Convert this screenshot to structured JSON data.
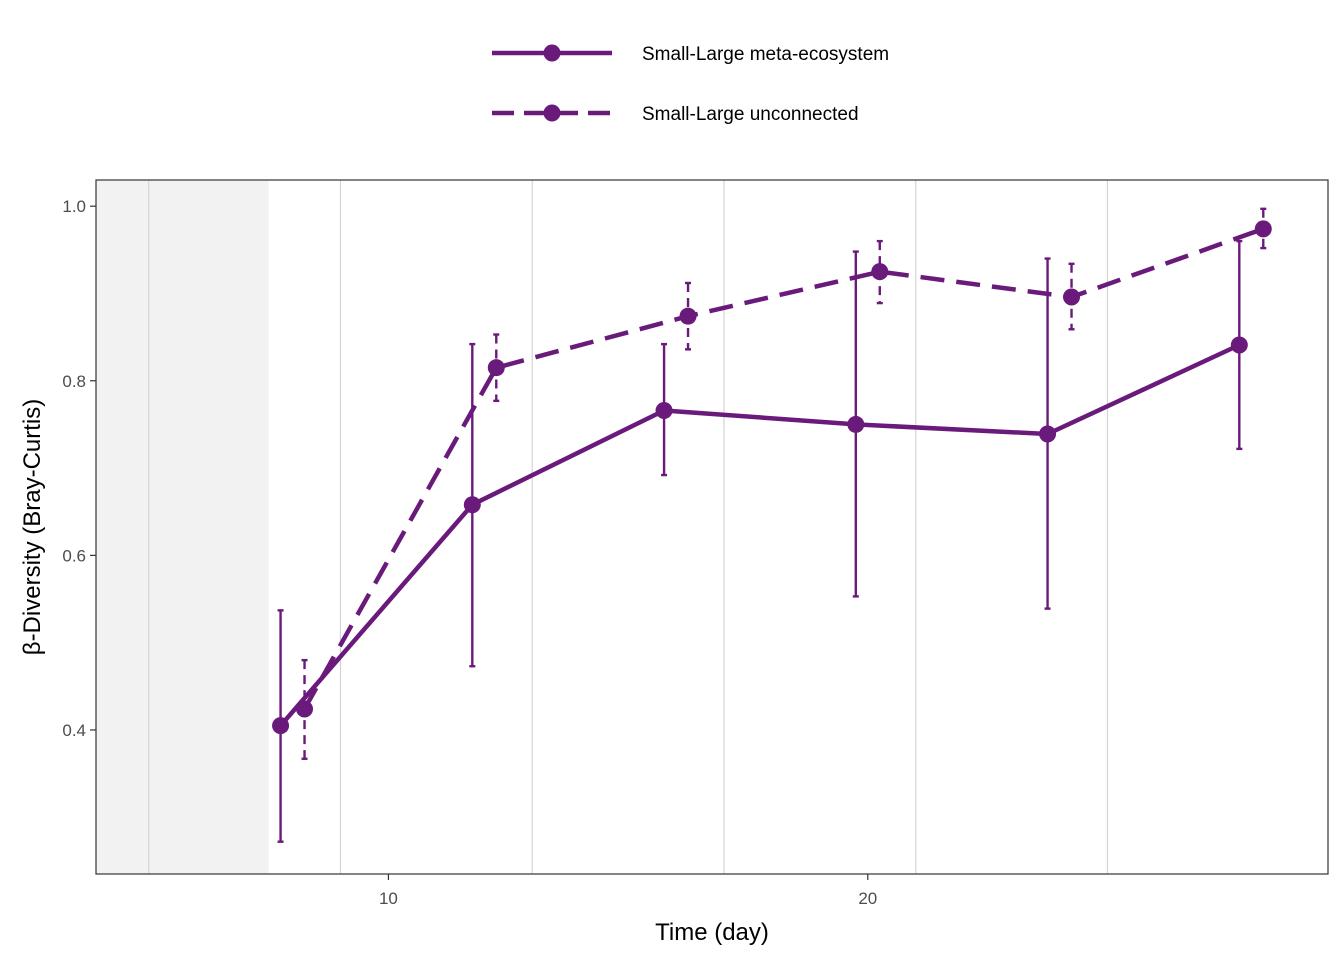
{
  "chart_data": {
    "type": "line",
    "title": "",
    "xlabel": "Time (day)",
    "ylabel": "β-Diversity (Bray-Curtis)",
    "xlim": [
      3.9,
      29.6
    ],
    "ylim": [
      0.235,
      1.03
    ],
    "x_ticks": [
      10,
      20
    ],
    "x_tick_labels": [
      "10",
      "20"
    ],
    "y_ticks": [
      0.4,
      0.6,
      0.8,
      1.0
    ],
    "y_tick_labels": [
      "0.4",
      "0.6",
      "0.8",
      "1.0"
    ],
    "x_minor_gridlines": [
      5,
      9,
      13,
      17,
      21,
      25
    ],
    "shaded_region": [
      3.9,
      7.5
    ],
    "grid": true,
    "legend_position": "top",
    "series": [
      {
        "name": "Small-Large meta-ecosystem",
        "line_style": "solid",
        "color": "#6a1a7a",
        "x": [
          7.75,
          11.75,
          15.75,
          19.75,
          23.75,
          27.75
        ],
        "y": [
          0.405,
          0.658,
          0.766,
          0.75,
          0.739,
          0.841
        ],
        "y_low": [
          0.272,
          0.473,
          0.692,
          0.553,
          0.539,
          0.722
        ],
        "y_high": [
          0.537,
          0.842,
          0.842,
          0.948,
          0.94,
          0.96
        ]
      },
      {
        "name": "Small-Large unconnected",
        "line_style": "dashed",
        "color": "#6a1a7a",
        "x": [
          8.25,
          12.25,
          16.25,
          20.25,
          24.25,
          28.25
        ],
        "y": [
          0.424,
          0.815,
          0.874,
          0.925,
          0.896,
          0.974
        ],
        "y_low": [
          0.367,
          0.777,
          0.836,
          0.889,
          0.859,
          0.952
        ],
        "y_high": [
          0.48,
          0.853,
          0.912,
          0.96,
          0.934,
          0.997
        ]
      }
    ]
  }
}
